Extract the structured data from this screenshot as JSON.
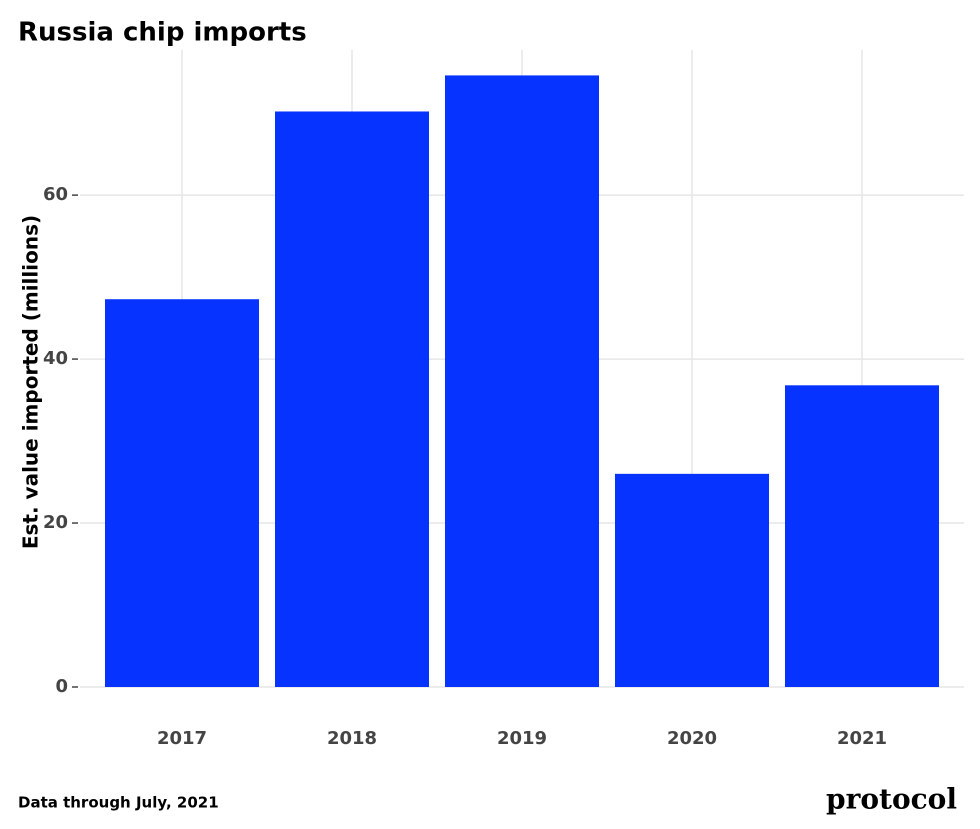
{
  "chart_data": {
    "type": "bar",
    "title": "Russia chip imports",
    "y_label": "Est. value imported (millions)",
    "caption": "Data through July, 2021",
    "logo": "protocol",
    "categories": [
      "2017",
      "2018",
      "2019",
      "2020",
      "2021"
    ],
    "values": [
      47.3,
      70.2,
      74.6,
      26.0,
      36.8
    ],
    "color": "#0633ff",
    "ylim": [
      0,
      77.7
    ],
    "yticks": [
      0,
      20,
      40,
      60
    ],
    "grid": true
  }
}
